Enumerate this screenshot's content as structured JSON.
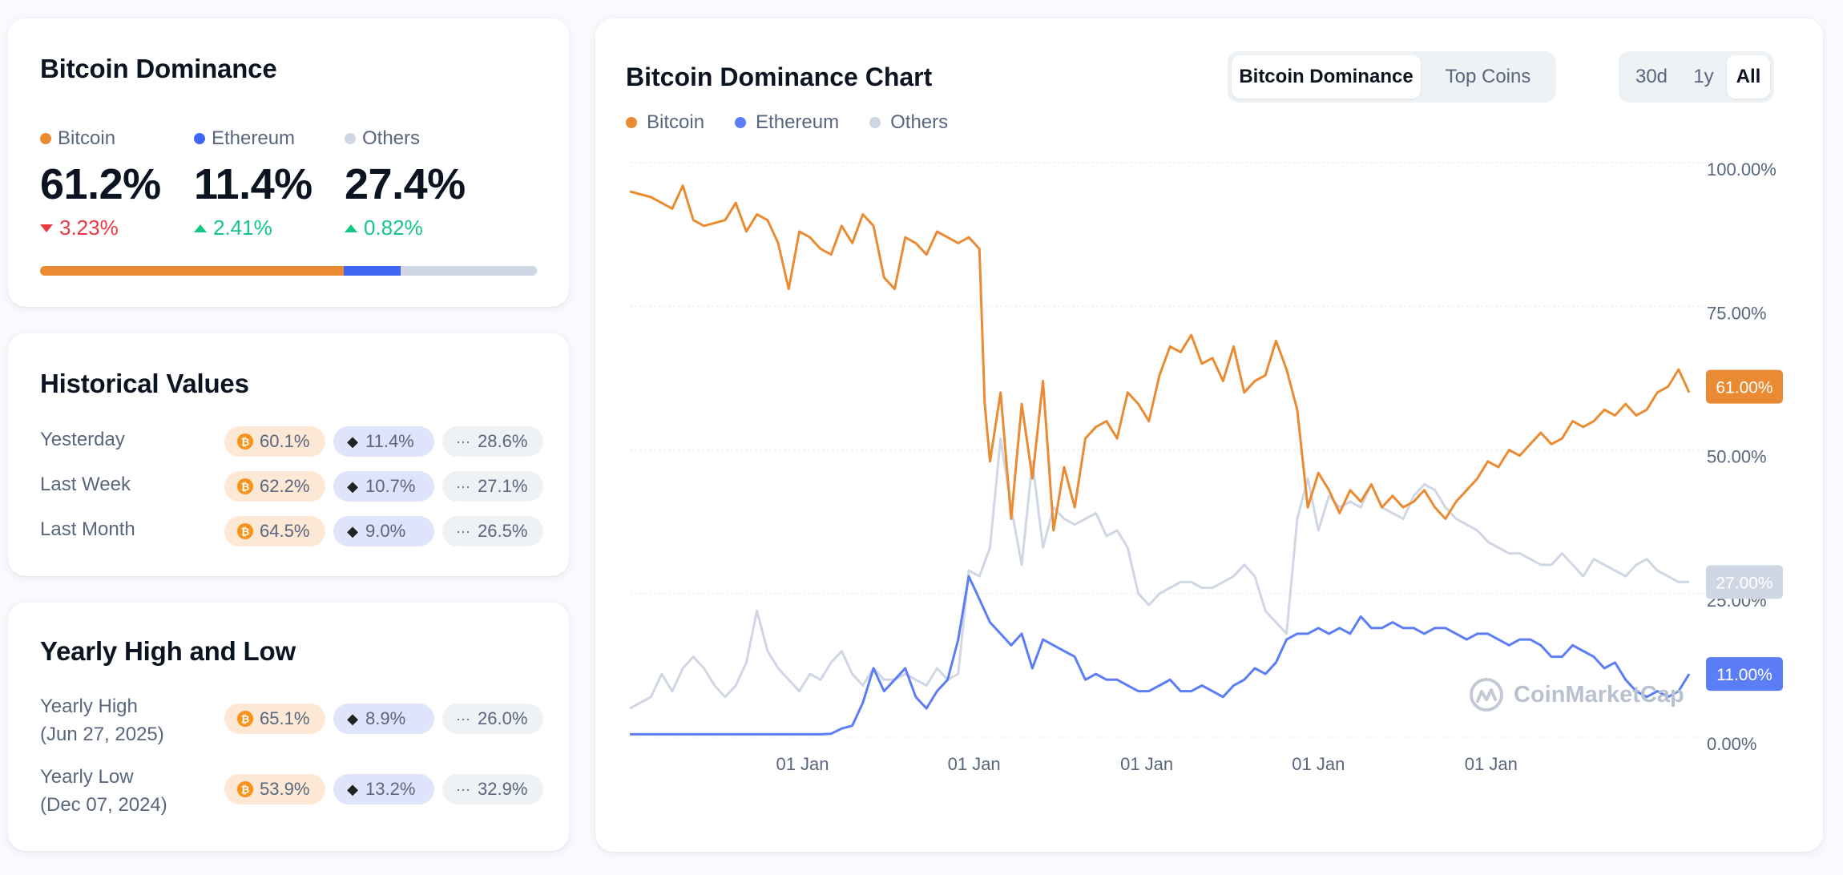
{
  "dominance": {
    "title": "Bitcoin Dominance",
    "items": [
      {
        "name": "Bitcoin",
        "value": "61.2%",
        "change": "3.23%",
        "direction": "down",
        "color": "#ea8b33"
      },
      {
        "name": "Ethereum",
        "value": "11.4%",
        "change": "2.41%",
        "direction": "up",
        "color": "#3f66f2"
      },
      {
        "name": "Others",
        "value": "27.4%",
        "change": "0.82%",
        "direction": "up",
        "color": "#cfd6e4"
      }
    ],
    "bar_fractions": [
      0.612,
      0.114,
      0.274
    ]
  },
  "historical": {
    "title": "Historical Values",
    "rows": [
      {
        "label": "Yesterday",
        "btc": "60.1%",
        "eth": "11.4%",
        "others": "28.6%"
      },
      {
        "label": "Last Week",
        "btc": "62.2%",
        "eth": "10.7%",
        "others": "27.1%"
      },
      {
        "label": "Last Month",
        "btc": "64.5%",
        "eth": "9.0%",
        "others": "26.5%"
      }
    ]
  },
  "yearly": {
    "title": "Yearly High and Low",
    "rows": [
      {
        "label": "Yearly High",
        "date": "(Jun 27, 2025)",
        "btc": "65.1%",
        "eth": "8.9%",
        "others": "26.0%"
      },
      {
        "label": "Yearly Low",
        "date": "(Dec 07, 2024)",
        "btc": "53.9%",
        "eth": "13.2%",
        "others": "32.9%"
      }
    ]
  },
  "chart": {
    "title": "Bitcoin Dominance Chart",
    "legend": [
      "Bitcoin",
      "Ethereum",
      "Others"
    ],
    "view_tabs": [
      "Bitcoin Dominance",
      "Top Coins"
    ],
    "active_view": "Bitcoin Dominance",
    "range_tabs": [
      "30d",
      "1y",
      "All"
    ],
    "active_range": "All",
    "watermark": "CoinMarketCap",
    "icons": {
      "btc": "bitcoin-icon",
      "eth": "ethereum-icon",
      "others": "more-dots-icon",
      "logo": "coinmarketcap-logo-icon"
    }
  },
  "chart_data": {
    "type": "line",
    "title": "Bitcoin Dominance Chart",
    "xlabel": "",
    "ylabel": "",
    "ylim": [
      0,
      100
    ],
    "y_ticks": [
      "100.00%",
      "75.00%",
      "50.00%",
      "25.00%",
      "0.00%"
    ],
    "x_ticks": [
      "01 Jan",
      "01 Jan",
      "01 Jan",
      "01 Jan",
      "01 Jan"
    ],
    "current_labels": {
      "Bitcoin": "61.00%",
      "Others": "27.00%",
      "Ethereum": "11.00%"
    },
    "colors": {
      "Bitcoin": "#ea8b33",
      "Ethereum": "#5b7df5",
      "Others": "#cfd6e4"
    },
    "grid": true,
    "x_domain": [
      0,
      100
    ],
    "series": [
      {
        "name": "Bitcoin",
        "x": [
          0,
          2,
          4,
          5,
          6,
          7,
          9,
          10,
          11,
          12,
          13,
          14,
          15,
          16,
          17,
          18,
          19,
          20,
          21,
          22,
          23,
          24,
          25,
          26,
          27,
          28,
          29,
          30,
          31,
          32,
          33,
          33.5,
          34,
          35,
          36,
          37,
          38,
          39,
          40,
          41,
          42,
          43,
          44,
          45,
          46,
          47,
          48,
          49,
          50,
          51,
          52,
          53,
          54,
          55,
          56,
          57,
          58,
          59,
          60,
          61,
          62,
          63,
          64,
          65,
          66,
          67,
          68,
          69,
          70,
          71,
          72,
          73,
          74,
          75,
          76,
          77,
          78,
          79,
          80,
          81,
          82,
          83,
          84,
          85,
          86,
          87,
          88,
          89,
          90,
          91,
          92,
          93,
          94,
          95,
          96,
          97,
          98,
          99,
          100
        ],
        "values": [
          95,
          94,
          92,
          96,
          90,
          89,
          90,
          93,
          88,
          91,
          90,
          86,
          78,
          88,
          87,
          85,
          84,
          89,
          86,
          91,
          89,
          80,
          78,
          87,
          86,
          84,
          88,
          87,
          86,
          87,
          85,
          58,
          48,
          60,
          38,
          58,
          45,
          62,
          36,
          47,
          40,
          52,
          54,
          55,
          52,
          60,
          58,
          55,
          63,
          68,
          67,
          70,
          65,
          66,
          62,
          68,
          60,
          62,
          63,
          69,
          64,
          57,
          40,
          46,
          43,
          39,
          43,
          41,
          44,
          40,
          42,
          40,
          41,
          43,
          40,
          38,
          41,
          43,
          45,
          48,
          47,
          50,
          49,
          51,
          53,
          51,
          52,
          55,
          54,
          55,
          57,
          56,
          58,
          56,
          57,
          60,
          61,
          64,
          60
        ]
      },
      {
        "name": "Ethereum",
        "x": [
          0,
          10,
          17,
          18,
          19,
          20,
          21,
          22,
          23,
          24,
          25,
          26,
          27,
          28,
          29,
          30,
          31,
          32,
          33,
          34,
          35,
          36,
          37,
          38,
          39,
          40,
          41,
          42,
          43,
          44,
          45,
          46,
          47,
          48,
          49,
          50,
          51,
          52,
          53,
          54,
          55,
          56,
          57,
          58,
          59,
          60,
          61,
          62,
          63,
          64,
          65,
          66,
          67,
          68,
          69,
          70,
          71,
          72,
          73,
          74,
          75,
          76,
          77,
          78,
          79,
          80,
          81,
          82,
          83,
          84,
          85,
          86,
          87,
          88,
          89,
          90,
          91,
          92,
          93,
          94,
          95,
          96,
          97,
          98,
          99,
          100
        ],
        "values": [
          0.5,
          0.5,
          0.5,
          0.5,
          0.6,
          1.5,
          2,
          6,
          12,
          8,
          10,
          12,
          7,
          5,
          8,
          10,
          17,
          28,
          24,
          20,
          18,
          16,
          18,
          12,
          17,
          16,
          15,
          14,
          10,
          11,
          10,
          10,
          9,
          8,
          8,
          9,
          10,
          8,
          8,
          9,
          8,
          7,
          9,
          10,
          12,
          11,
          13,
          17,
          18,
          18,
          19,
          18,
          19,
          18,
          21,
          19,
          19,
          20,
          19,
          19,
          18,
          19,
          19,
          18,
          17,
          18,
          18,
          17,
          16,
          17,
          17,
          16,
          14,
          14,
          16,
          15,
          14,
          12,
          13,
          10,
          8,
          7,
          8,
          7,
          8,
          11
        ]
      },
      {
        "name": "Others",
        "x": [
          0,
          2,
          3,
          4,
          5,
          6,
          7,
          8,
          9,
          10,
          11,
          12,
          13,
          14,
          15,
          16,
          17,
          18,
          19,
          20,
          21,
          22,
          23,
          24,
          25,
          26,
          27,
          28,
          29,
          30,
          31,
          32,
          33,
          34,
          35,
          36,
          37,
          38,
          39,
          40,
          41,
          42,
          43,
          44,
          45,
          46,
          47,
          48,
          49,
          50,
          51,
          52,
          53,
          54,
          55,
          56,
          57,
          58,
          59,
          60,
          61,
          62,
          63,
          64,
          65,
          66,
          67,
          68,
          69,
          70,
          71,
          72,
          73,
          74,
          75,
          76,
          77,
          78,
          79,
          80,
          81,
          82,
          83,
          84,
          85,
          86,
          87,
          88,
          89,
          90,
          91,
          92,
          93,
          94,
          95,
          96,
          97,
          98,
          99,
          100
        ],
        "values": [
          5,
          7,
          11,
          8,
          12,
          14,
          12,
          9,
          7,
          9,
          13,
          22,
          15,
          12,
          10,
          8,
          11,
          10,
          13,
          15,
          11,
          9,
          12,
          10,
          10,
          11,
          10,
          9,
          12,
          10,
          11,
          29,
          28,
          33,
          52,
          40,
          30,
          48,
          33,
          40,
          38,
          37,
          38,
          39,
          35,
          36,
          33,
          25,
          23,
          25,
          26,
          27,
          27,
          26,
          26,
          27,
          28,
          30,
          28,
          22,
          20,
          18,
          38,
          45,
          36,
          42,
          40,
          41,
          40,
          44,
          40,
          39,
          38,
          42,
          44,
          43,
          40,
          38,
          37,
          36,
          34,
          33,
          32,
          32,
          31,
          30,
          30,
          32,
          30,
          28,
          31,
          30,
          29,
          28,
          30,
          31,
          29,
          28,
          27,
          27
        ]
      }
    ]
  }
}
